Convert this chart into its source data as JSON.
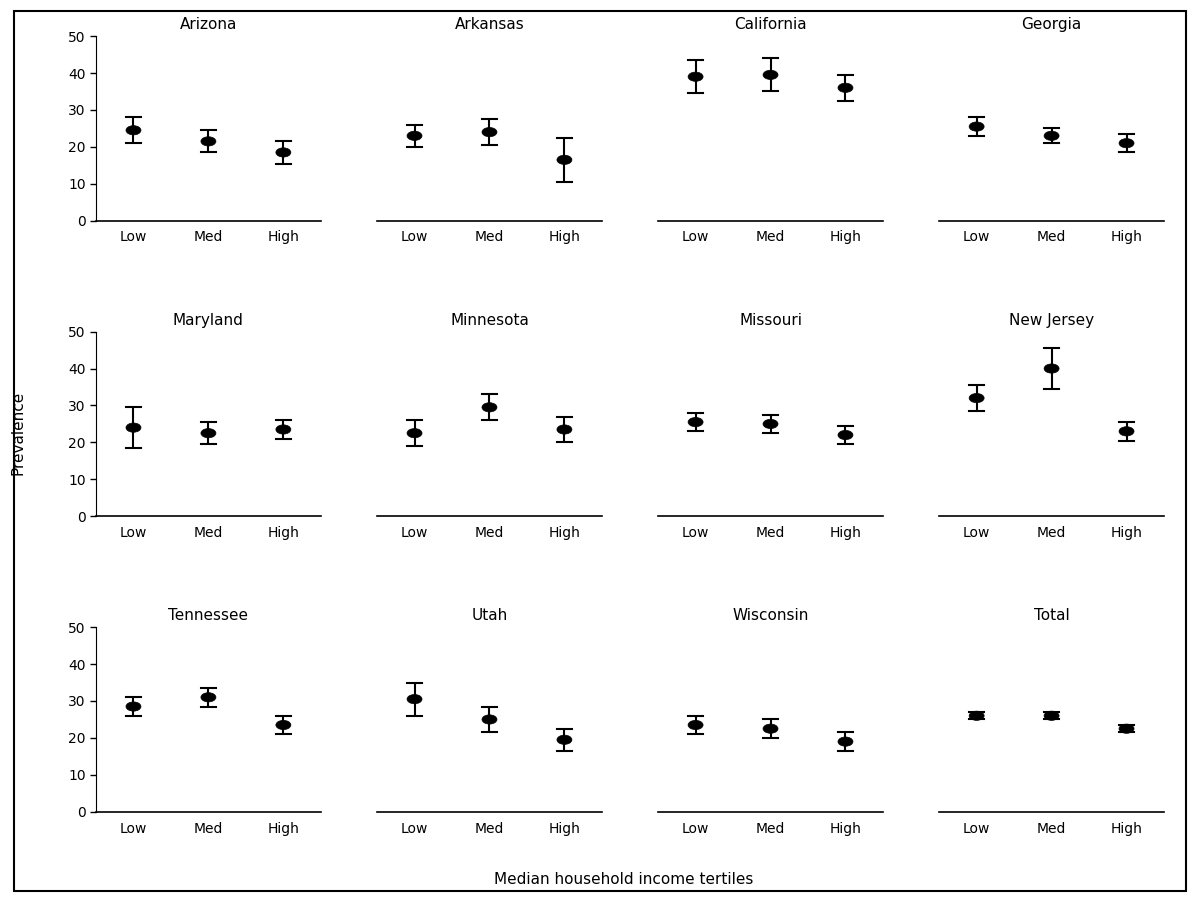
{
  "sites": [
    "Arizona",
    "Arkansas",
    "California",
    "Georgia",
    "Maryland",
    "Minnesota",
    "Missouri",
    "New Jersey",
    "Tennessee",
    "Utah",
    "Wisconsin",
    "Total"
  ],
  "categories": [
    "Low",
    "Med",
    "High"
  ],
  "values": {
    "Arizona": [
      24.5,
      21.5,
      18.5
    ],
    "Arkansas": [
      23.0,
      24.0,
      16.5
    ],
    "California": [
      39.0,
      39.5,
      36.0
    ],
    "Georgia": [
      25.5,
      23.0,
      21.0
    ],
    "Maryland": [
      24.0,
      22.5,
      23.5
    ],
    "Minnesota": [
      22.5,
      29.5,
      23.5
    ],
    "Missouri": [
      25.5,
      25.0,
      22.0
    ],
    "New Jersey": [
      32.0,
      40.0,
      23.0
    ],
    "Tennessee": [
      28.5,
      31.0,
      23.5
    ],
    "Utah": [
      30.5,
      25.0,
      19.5
    ],
    "Wisconsin": [
      23.5,
      22.5,
      19.0
    ],
    "Total": [
      26.0,
      26.0,
      22.5
    ]
  },
  "errors_low": {
    "Arizona": [
      3.5,
      3.0,
      3.0
    ],
    "Arkansas": [
      3.0,
      3.5,
      6.0
    ],
    "California": [
      4.5,
      4.5,
      3.5
    ],
    "Georgia": [
      2.5,
      2.0,
      2.5
    ],
    "Maryland": [
      5.5,
      3.0,
      2.5
    ],
    "Minnesota": [
      3.5,
      3.5,
      3.5
    ],
    "Missouri": [
      2.5,
      2.5,
      2.5
    ],
    "New Jersey": [
      3.5,
      5.5,
      2.5
    ],
    "Tennessee": [
      2.5,
      2.5,
      2.5
    ],
    "Utah": [
      4.5,
      3.5,
      3.0
    ],
    "Wisconsin": [
      2.5,
      2.5,
      2.5
    ],
    "Total": [
      1.0,
      1.0,
      1.0
    ]
  },
  "errors_high": {
    "Arizona": [
      3.5,
      3.0,
      3.0
    ],
    "Arkansas": [
      3.0,
      3.5,
      6.0
    ],
    "California": [
      4.5,
      4.5,
      3.5
    ],
    "Georgia": [
      2.5,
      2.0,
      2.5
    ],
    "Maryland": [
      5.5,
      3.0,
      2.5
    ],
    "Minnesota": [
      3.5,
      3.5,
      3.5
    ],
    "Missouri": [
      2.5,
      2.5,
      2.5
    ],
    "New Jersey": [
      3.5,
      5.5,
      2.5
    ],
    "Tennessee": [
      2.5,
      2.5,
      2.5
    ],
    "Utah": [
      4.5,
      3.5,
      3.0
    ],
    "Wisconsin": [
      2.5,
      2.5,
      2.5
    ],
    "Total": [
      1.0,
      1.0,
      1.0
    ]
  },
  "ylim": [
    0,
    50
  ],
  "yticks": [
    0,
    10,
    20,
    30,
    40,
    50
  ],
  "xlabel": "Median household income tertiles",
  "ylabel": "Prevalence",
  "marker_color": "#000000",
  "title_fontsize": 11,
  "tick_fontsize": 10,
  "axis_label_fontsize": 11
}
